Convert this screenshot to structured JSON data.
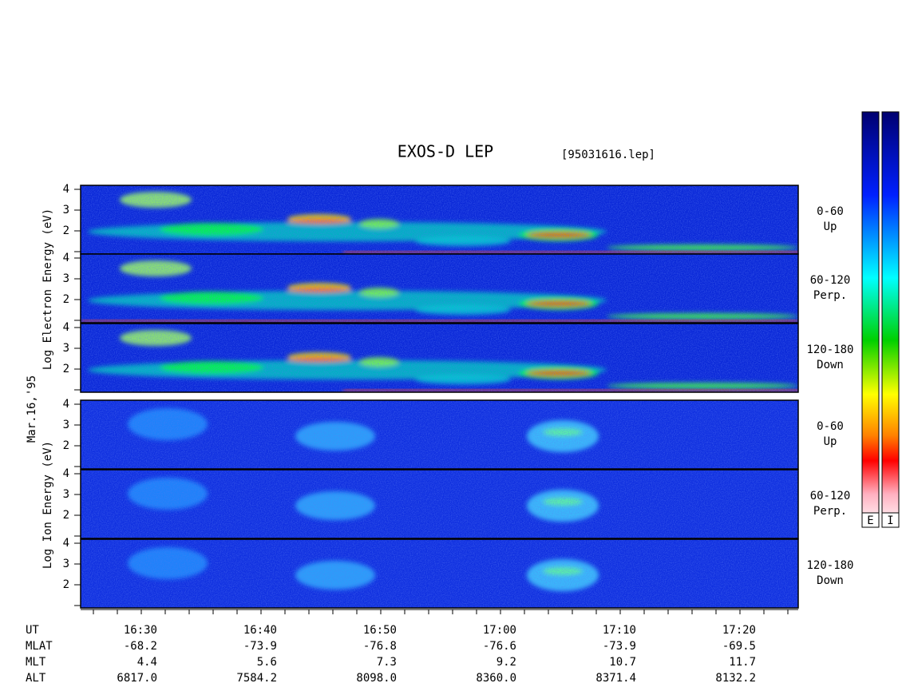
{
  "title": "EXOS-D LEP",
  "file": "[95031616.lep]",
  "date": "Mar.16,'95",
  "electron_axis": "Log  Electron  Energy (eV)",
  "ion_axis": "Log  Ion  Energy (eV)",
  "yticks": [
    4,
    3,
    2
  ],
  "panels": [
    {
      "angle": "0-60",
      "dir": "Up"
    },
    {
      "angle": "60-120",
      "dir": "Perp."
    },
    {
      "angle": "120-180",
      "dir": "Down"
    },
    {
      "angle": "0-60",
      "dir": "Up"
    },
    {
      "angle": "60-120",
      "dir": "Perp."
    },
    {
      "angle": "120-180",
      "dir": "Down"
    }
  ],
  "time_axis": [
    {
      "name": "UT",
      "values": [
        "16:30",
        "16:40",
        "16:50",
        "17:00",
        "17:10",
        "17:20"
      ]
    },
    {
      "name": "MLAT",
      "values": [
        "-68.2",
        "-73.9",
        "-76.8",
        "-76.6",
        "-73.9",
        "-69.5"
      ]
    },
    {
      "name": "MLT",
      "values": [
        "4.4",
        "5.6",
        "7.3",
        "9.2",
        "10.7",
        "11.7"
      ]
    },
    {
      "name": "ALT",
      "values": [
        "6817.0",
        "7584.2",
        "8098.0",
        "8360.0",
        "8371.4",
        "8132.2"
      ]
    }
  ],
  "colorbars": [
    "E",
    "I"
  ]
}
